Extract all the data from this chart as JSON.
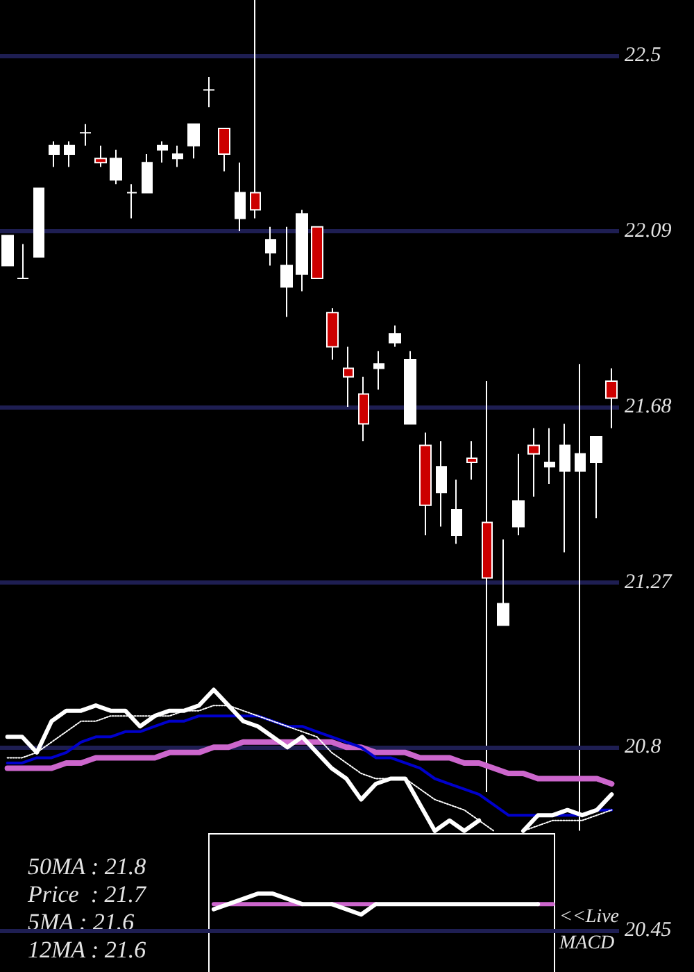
{
  "chart_data": [
    {
      "type": "candlestick",
      "categories": [
        null,
        null,
        null,
        null,
        null,
        null,
        null,
        null,
        null,
        null,
        null,
        null,
        null,
        null,
        null,
        null,
        null,
        null,
        null,
        null,
        null,
        null,
        null,
        null,
        null,
        null,
        null,
        null,
        null,
        null,
        null,
        null,
        null,
        null,
        null,
        null,
        null,
        null,
        null,
        null
      ],
      "ohlc": [
        [
          22.01,
          22.08,
          22.01,
          22.08
        ],
        [
          21.98,
          22.06,
          21.98,
          21.98
        ],
        [
          22.03,
          22.19,
          22.03,
          22.19
        ],
        [
          22.27,
          22.3,
          22.24,
          22.29
        ],
        [
          22.27,
          22.3,
          22.24,
          22.29
        ],
        [
          22.32,
          22.34,
          22.29,
          22.32
        ],
        [
          22.26,
          22.29,
          22.24,
          22.25
        ],
        [
          22.21,
          22.28,
          22.2,
          22.26
        ],
        [
          22.18,
          22.2,
          22.12,
          22.18
        ],
        [
          22.18,
          22.27,
          22.18,
          22.25
        ],
        [
          22.28,
          22.3,
          22.25,
          22.29
        ],
        [
          22.26,
          22.29,
          22.24,
          22.27
        ],
        [
          22.29,
          22.34,
          22.26,
          22.34
        ],
        [
          22.42,
          22.45,
          22.38,
          22.42
        ],
        [
          22.33,
          22.33,
          22.23,
          22.27
        ],
        [
          22.12,
          22.25,
          22.09,
          22.18
        ],
        [
          22.18,
          22.63,
          22.12,
          22.14
        ],
        [
          22.04,
          22.1,
          22.01,
          22.07
        ],
        [
          21.96,
          22.1,
          21.89,
          22.01
        ],
        [
          21.99,
          22.14,
          21.95,
          22.13
        ],
        [
          22.1,
          22.1,
          21.98,
          21.98
        ],
        [
          21.9,
          21.91,
          21.79,
          21.82
        ],
        [
          21.77,
          21.82,
          21.68,
          21.75
        ],
        [
          21.71,
          21.75,
          21.6,
          21.64
        ],
        [
          21.77,
          21.81,
          21.72,
          21.78
        ],
        [
          21.83,
          21.87,
          21.82,
          21.85
        ],
        [
          21.64,
          21.81,
          21.64,
          21.79
        ],
        [
          21.59,
          21.62,
          21.38,
          21.45
        ],
        [
          21.48,
          21.6,
          21.4,
          21.54
        ],
        [
          21.38,
          21.51,
          21.36,
          21.44
        ],
        [
          21.56,
          21.6,
          21.51,
          21.55
        ],
        [
          21.41,
          21.74,
          20.78,
          21.28
        ],
        [
          21.17,
          21.37,
          21.17,
          21.22
        ],
        [
          21.4,
          21.57,
          21.38,
          21.46
        ],
        [
          21.59,
          21.63,
          21.47,
          21.57
        ],
        [
          21.54,
          21.63,
          21.5,
          21.55
        ],
        [
          21.53,
          21.64,
          21.34,
          21.59
        ],
        [
          21.53,
          21.78,
          20.69,
          21.57
        ],
        [
          21.55,
          21.61,
          21.42,
          21.61
        ],
        [
          21.74,
          21.77,
          21.63,
          21.7
        ]
      ],
      "colors": [
        "#ffffff",
        "#ffffff",
        "#ffffff",
        "#ffffff",
        "#ffffff",
        "#ffffff",
        "#cc0000",
        "#ffffff",
        "#ffffff",
        "#ffffff",
        "#ffffff",
        "#ffffff",
        "#ffffff",
        "#ffffff",
        "#cc0000",
        "#ffffff",
        "#cc0000",
        "#ffffff",
        "#ffffff",
        "#ffffff",
        "#cc0000",
        "#cc0000",
        "#cc0000",
        "#cc0000",
        "#ffffff",
        "#ffffff",
        "#ffffff",
        "#cc0000",
        "#ffffff",
        "#ffffff",
        "#cc0000",
        "#cc0000",
        "#ffffff",
        "#ffffff",
        "#cc0000",
        "#ffffff",
        "#ffffff",
        "#ffffff",
        "#ffffff",
        "#cc0000"
      ],
      "ylim": [
        20.36,
        22.63
      ],
      "yticks": [
        22.5,
        22.09,
        21.68,
        21.27
      ],
      "grid": "y",
      "tick_labels": "y",
      "annotations": [
        "<<Live MACD"
      ]
    },
    {
      "type": "line",
      "categories": [
        null,
        null,
        null,
        null,
        null,
        null,
        null,
        null,
        null,
        null,
        null,
        null,
        null,
        null,
        null,
        null,
        null,
        null,
        null,
        null,
        null,
        null,
        null,
        null,
        null,
        null,
        null,
        null,
        null,
        null,
        null,
        null,
        null,
        null,
        null,
        null,
        null,
        null,
        null,
        null,
        null,
        null
      ],
      "series": [
        {
          "color": "#cc66cc",
          "values": [
            20.76,
            20.76,
            20.76,
            20.76,
            20.77,
            20.77,
            20.78,
            20.78,
            20.78,
            20.78,
            20.78,
            20.79,
            20.79,
            20.79,
            20.8,
            20.8,
            20.81,
            20.81,
            20.81,
            20.81,
            20.81,
            20.81,
            20.81,
            20.8,
            20.8,
            20.79,
            20.79,
            20.79,
            20.78,
            20.78,
            20.78,
            20.77,
            20.77,
            20.76,
            20.75,
            20.75,
            20.74,
            20.74,
            20.74,
            20.74,
            20.74,
            20.73
          ]
        },
        {
          "color": "#0000cc",
          "values": [
            20.77,
            20.77,
            20.78,
            20.78,
            20.79,
            20.81,
            20.82,
            20.82,
            20.83,
            20.83,
            20.84,
            20.85,
            20.85,
            20.86,
            20.86,
            20.86,
            20.86,
            20.86,
            20.85,
            20.84,
            20.84,
            20.83,
            20.82,
            20.81,
            20.8,
            20.78,
            20.78,
            20.77,
            20.76,
            20.74,
            20.73,
            20.72,
            20.71,
            20.69,
            20.67,
            20.67,
            20.67,
            20.67,
            20.67,
            20.67,
            20.68,
            20.68
          ]
        },
        {
          "color": "#ffffff",
          "line_style": "dotted",
          "values": [
            20.78,
            20.78,
            20.79,
            20.81,
            20.83,
            20.85,
            20.85,
            20.86,
            20.86,
            20.86,
            20.86,
            20.86,
            20.87,
            20.87,
            20.88,
            20.88,
            20.87,
            20.86,
            20.85,
            20.84,
            20.83,
            20.82,
            20.79,
            20.77,
            20.75,
            20.74,
            20.74,
            20.74,
            20.72,
            20.7,
            20.69,
            20.68,
            20.66,
            20.64,
            null,
            20.64,
            20.65,
            20.66,
            20.66,
            20.66,
            20.67,
            20.68
          ]
        },
        {
          "color": "#ffffff",
          "values": [
            20.82,
            20.82,
            20.79,
            20.85,
            20.87,
            20.87,
            20.88,
            20.87,
            20.87,
            20.84,
            20.86,
            20.87,
            20.87,
            20.88,
            20.91,
            20.88,
            20.85,
            20.84,
            20.82,
            20.8,
            20.82,
            20.79,
            20.76,
            20.74,
            20.7,
            20.73,
            20.74,
            20.74,
            20.69,
            20.64,
            20.66,
            20.64,
            20.66,
            null,
            null,
            20.64,
            20.67,
            20.67,
            20.68,
            20.67,
            20.68,
            20.71
          ]
        },
        {
          "color": "#cc66cc",
          "values": [
            null,
            null,
            null,
            null,
            null,
            null,
            null,
            null,
            null,
            null,
            null,
            null,
            null,
            null,
            20.5,
            20.5,
            20.5,
            20.5,
            20.5,
            20.5,
            20.5,
            null,
            20.5,
            20.5,
            20.5,
            20.5,
            null,
            null,
            null,
            null,
            null,
            null,
            null,
            null,
            null,
            null,
            20.5,
            20.5,
            null,
            null,
            null,
            null
          ]
        },
        {
          "color": "#ffffff",
          "values": [
            null,
            null,
            null,
            null,
            null,
            null,
            null,
            null,
            null,
            null,
            null,
            null,
            null,
            null,
            20.49,
            20.5,
            20.51,
            20.52,
            20.52,
            20.51,
            20.5,
            20.5,
            20.5,
            20.49,
            20.48,
            20.5,
            20.5,
            20.5,
            20.5,
            20.5,
            20.5,
            20.5,
            20.5,
            20.5,
            20.5,
            20.5,
            20.5,
            null,
            null,
            null,
            null,
            null
          ]
        }
      ],
      "ylim": [
        20.37,
        22.23
      ],
      "yticks": [
        20.8,
        20.45
      ],
      "grid": "y",
      "tick_labels": "y",
      "line_style": "solid",
      "marker": "none",
      "annotations": [
        "50MA : 21.8",
        "Price  : 21.7",
        "5MA : 21.6",
        "12MA : 21.6"
      ]
    }
  ]
}
